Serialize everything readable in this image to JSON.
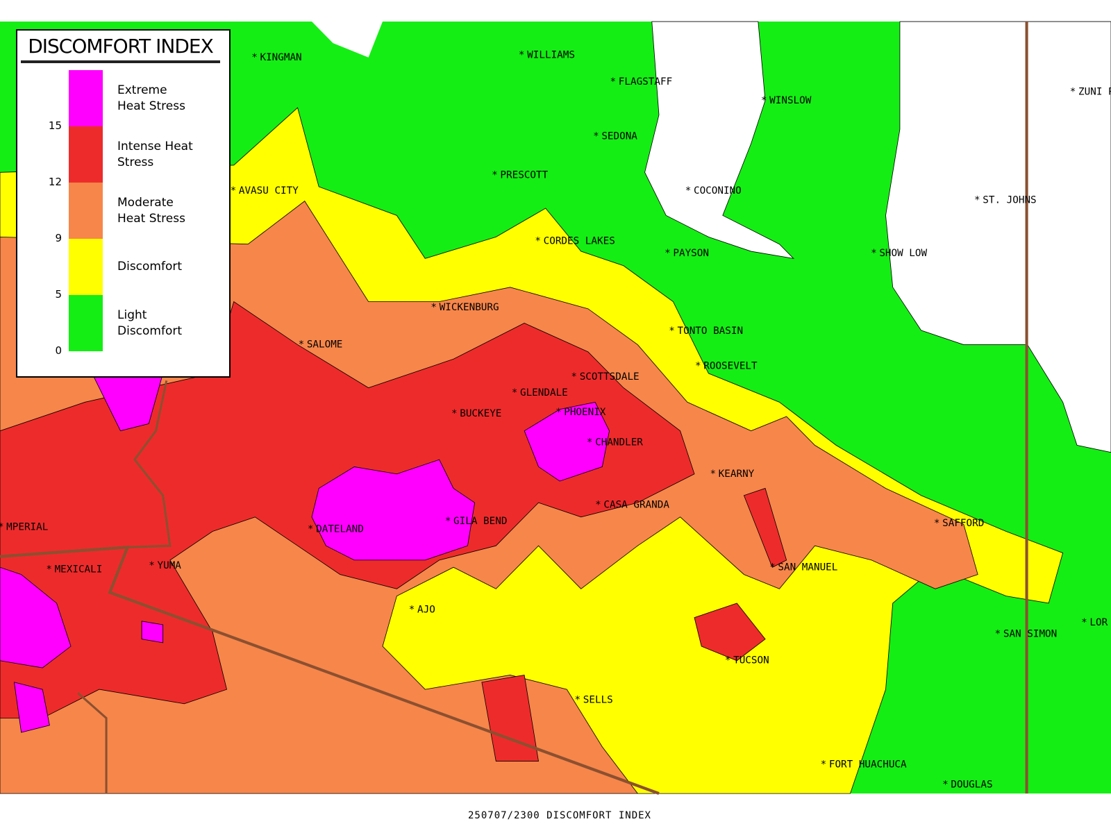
{
  "legend": {
    "title": "DISCOMFORT INDEX",
    "classes": [
      {
        "label": "Light Discomfort",
        "color": "#14ee14"
      },
      {
        "label": "Discomfort",
        "color": "#ffff00"
      },
      {
        "label": "Moderate Heat Stress",
        "color": "#f7864a"
      },
      {
        "label": "Intense Heat Stress",
        "color": "#ee2b2b"
      },
      {
        "label": "Extreme Heat Stress",
        "color": "#ff00ff"
      }
    ],
    "breaks": [
      0,
      5,
      9,
      12,
      15
    ]
  },
  "cities": [
    "KINGMAN",
    "WILLIAMS",
    "FLAGSTAFF",
    "ZUNI P",
    "WINSLOW",
    "SEDONA",
    "PRESCOTT",
    "COCONINO",
    "ST. JOHNS",
    "AVASU CITY",
    "CORDES LAKES",
    "PAYSON",
    "SHOW LOW",
    "WICKENBURG",
    "TONTO BASIN",
    "SALOME",
    "ROOSEVELT",
    "SCOTTSDALE",
    "GLENDALE",
    "BUCKEYE",
    "PHOENIX",
    "CHANDLER",
    "KEARNY",
    "CASA GRANDA",
    "SAFFORD",
    "GILA BEND",
    "DATELAND",
    "MPERIAL",
    "MEXICALI",
    "YUMA",
    "SAN MANUEL",
    "AJO",
    "SAN SIMON",
    "LOR",
    "TUCSON",
    "SELLS",
    "FORT HUACHUCA",
    "DOUGLAS"
  ],
  "footer": "250707/2300 DISCOMFORT INDEX"
}
